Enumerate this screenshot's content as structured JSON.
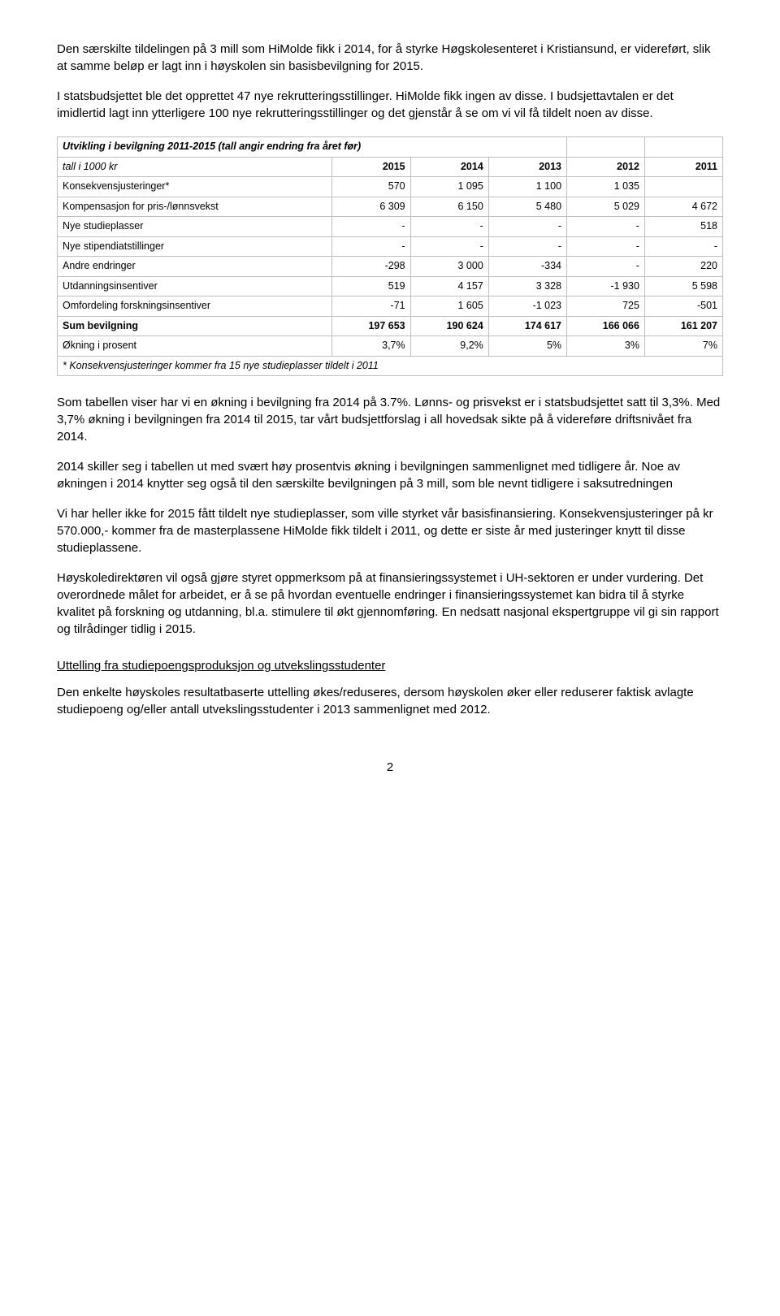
{
  "para1": "Den særskilte tildelingen på 3 mill som HiMolde fikk i 2014, for å styrke Høgskolesenteret i Kristiansund, er videreført, slik at samme beløp er lagt inn i høyskolen sin basisbevilgning for 2015.",
  "para2": "I statsbudsjettet ble det opprettet 47 nye rekrutteringsstillinger. HiMolde fikk ingen av disse. I budsjettavtalen er det imidlertid lagt inn ytterligere 100 nye rekrutteringsstillinger og det gjenstår å se om vi vil få tildelt noen av disse.",
  "table": {
    "title": "Utvikling i bevilgning 2011-2015 (tall angir endring fra året før)",
    "unit": "tall i 1000 kr",
    "years": [
      "2015",
      "2014",
      "2013",
      "2012",
      "2011"
    ],
    "rows": [
      {
        "label": "Konsekvensjusteringer*",
        "vals": [
          "570",
          "1 095",
          "1 100",
          "1 035",
          ""
        ]
      },
      {
        "label": "Kompensasjon for pris-/lønnsvekst",
        "vals": [
          "6 309",
          "6 150",
          "5 480",
          "5 029",
          "4 672"
        ]
      },
      {
        "label": "Nye studieplasser",
        "vals": [
          "-",
          "-",
          "-",
          "-",
          "518"
        ]
      },
      {
        "label": "Nye stipendiatstillinger",
        "vals": [
          "-",
          "-",
          "-",
          "-",
          "-"
        ]
      },
      {
        "label": "Andre endringer",
        "vals": [
          "-298",
          "3 000",
          "-334",
          "-",
          "220"
        ]
      },
      {
        "label": "Utdanningsinsentiver",
        "vals": [
          "519",
          "4 157",
          "3 328",
          "-1 930",
          "5 598"
        ]
      },
      {
        "label": "Omfordeling forskningsinsentiver",
        "vals": [
          "-71",
          "1 605",
          "-1 023",
          "725",
          "-501"
        ]
      }
    ],
    "sum": {
      "label": "Sum bevilgning",
      "vals": [
        "197 653",
        "190 624",
        "174 617",
        "166 066",
        "161 207"
      ]
    },
    "pct": {
      "label": "Økning i prosent",
      "vals": [
        "3,7%",
        "9,2%",
        "5%",
        "3%",
        "7%"
      ]
    },
    "footnote": "* Konsekvensjusteringer kommer fra 15 nye studieplasser tildelt i 2011",
    "border_color": "#bfbfbf",
    "font_size": 12.5
  },
  "para3": "Som tabellen viser har vi en økning i bevilgning fra 2014 på 3.7%. Lønns- og prisvekst er i statsbudsjettet satt til 3,3%. Med 3,7% økning i bevilgningen fra 2014 til 2015, tar vårt budsjettforslag i all hovedsak sikte på å videreføre driftsnivået fra 2014.",
  "para4": "2014 skiller seg i tabellen ut med svært høy prosentvis økning i bevilgningen sammenlignet med tidligere år. Noe av økningen i 2014 knytter seg også til den særskilte bevilgningen på 3 mill, som ble nevnt tidligere i saksutredningen",
  "para5": "Vi har heller ikke for 2015 fått tildelt nye studieplasser, som ville styrket vår basisfinansiering. Konsekvensjusteringer på kr 570.000,- kommer fra de masterplassene HiMolde fikk tildelt i 2011, og dette er siste år med justeringer knytt til disse studieplassene.",
  "para6": "Høyskoledirektøren vil også gjøre styret oppmerksom på at finansieringssystemet i UH-sektoren er under vurdering. Det overordnede målet for arbeidet, er å se på hvordan eventuelle endringer i finansieringssystemet kan bidra til å styrke kvalitet på forskning og utdanning, bl.a. stimulere til økt gjennomføring. En nedsatt nasjonal ekspertgruppe vil gi sin rapport og tilrådinger tidlig i 2015.",
  "heading": "Uttelling fra studiepoengsproduksjon og utvekslingsstudenter",
  "para7": "Den enkelte høyskoles resultatbaserte uttelling økes/reduseres, dersom høyskolen øker eller reduserer faktisk avlagte studiepoeng og/eller antall utvekslingsstudenter i 2013 sammenlignet med 2012.",
  "page_number": "2"
}
